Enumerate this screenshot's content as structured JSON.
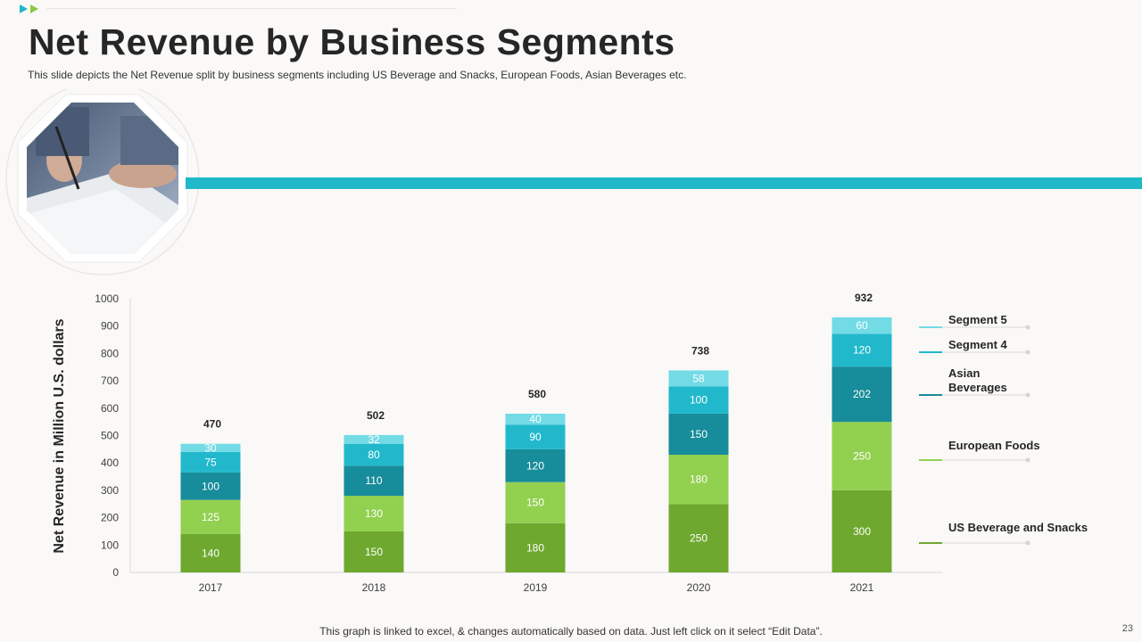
{
  "header": {
    "title": "Net Revenue by Business Segments",
    "subtitle": "This slide depicts the Net Revenue split by business segments including US Beverage and Snacks, European Foods, Asian Beverages etc."
  },
  "footer": {
    "note": "This graph is linked to excel, & changes automatically based on data. Just left click on it select “Edit Data”.",
    "page_number": "23"
  },
  "colors": {
    "accent": "#20b9c9",
    "arrow1": "#20b9c9",
    "arrow2": "#8dc63f"
  },
  "chart_data": {
    "type": "bar",
    "stacked": true,
    "categories": [
      "2017",
      "2018",
      "2019",
      "2020",
      "2021"
    ],
    "series": [
      {
        "name": "US Beverage and Snacks",
        "color": "#6ea82f",
        "values": [
          140,
          150,
          180,
          250,
          300
        ]
      },
      {
        "name": "European Foods",
        "color": "#92d050",
        "values": [
          125,
          130,
          150,
          180,
          250
        ]
      },
      {
        "name": "Asian Beverages",
        "color": "#178c9a",
        "values": [
          100,
          110,
          120,
          150,
          202
        ]
      },
      {
        "name": "Segment 4",
        "color": "#22b8cc",
        "values": [
          75,
          80,
          90,
          100,
          120
        ]
      },
      {
        "name": "Segment 5",
        "color": "#72dbe6",
        "values": [
          30,
          32,
          40,
          58,
          60
        ]
      }
    ],
    "totals": [
      470,
      502,
      580,
      738,
      932
    ],
    "ylabel": "Net Revenue in Million U.S. dollars",
    "xlabel": "",
    "ylim": [
      0,
      1000
    ],
    "yticks": [
      0,
      100,
      200,
      300,
      400,
      500,
      600,
      700,
      800,
      900,
      1000
    ],
    "legend": [
      {
        "label": "Segment 5",
        "color": "#72dbe6"
      },
      {
        "label": "Segment 4",
        "color": "#22b8cc"
      },
      {
        "label": "Asian Beverages",
        "color": "#178c9a"
      },
      {
        "label": "European Foods",
        "color": "#92d050"
      },
      {
        "label": "US Beverage and Snacks",
        "color": "#6ea82f"
      }
    ]
  }
}
